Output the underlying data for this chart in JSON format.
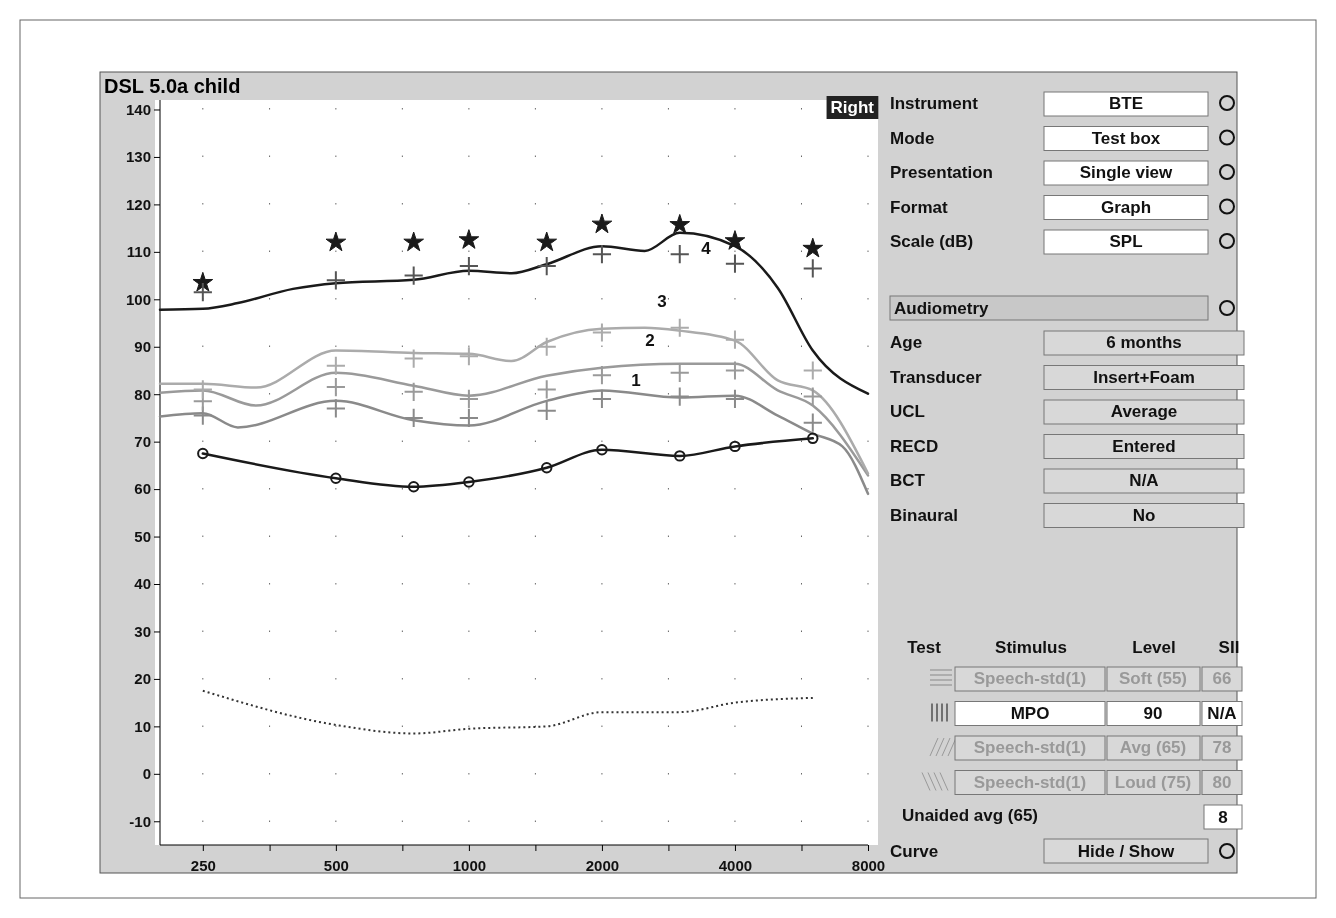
{
  "chart_data": [
    {
      "type": "line",
      "title": "DSL 5.0a child",
      "log": "x",
      "xlim": [
        200,
        8000
      ],
      "ylim": [
        -15,
        142
      ],
      "xticks": [
        250,
        {
          "value": 354,
          "label": null
        },
        500,
        {
          "value": 707,
          "label": null
        },
        1000,
        {
          "value": 1414,
          "label": null
        },
        2000,
        {
          "value": 2828,
          "label": null
        },
        4000,
        {
          "value": 5657,
          "label": null
        },
        8000
      ],
      "yticks": [
        -10,
        0,
        10,
        20,
        30,
        40,
        50,
        60,
        70,
        80,
        90,
        100,
        110,
        120,
        130,
        140
      ],
      "grid": true,
      "series": [
        {
          "type": "line",
          "color": "#8a8a8a",
          "marker": "none",
          "x": [
            200,
            250,
            300,
            500,
            750,
            1000,
            1500,
            2000,
            3000,
            4000,
            5000,
            6000,
            7000,
            8000
          ],
          "values": [
            75.3,
            76,
            73,
            78.6,
            74.5,
            73.4,
            78.6,
            80.8,
            79.3,
            79.7,
            75.5,
            71.7,
            69,
            59
          ]
        },
        {
          "type": "line",
          "color": "#9a9a9a",
          "marker": "none",
          "x": [
            200,
            250,
            330,
            500,
            750,
            1000,
            1500,
            2000,
            3000,
            4000,
            5000,
            6000,
            8000
          ],
          "values": [
            80.3,
            80.8,
            77.6,
            84.5,
            81.8,
            79.7,
            83.9,
            85.6,
            86.4,
            86.4,
            80.8,
            77.6,
            62.9
          ]
        },
        {
          "type": "line",
          "color": "#ababab",
          "marker": "none",
          "x": [
            200,
            250,
            330,
            500,
            750,
            1000,
            1250,
            1500,
            2000,
            2500,
            3000,
            4000,
            5000,
            6000,
            8000
          ],
          "values": [
            82.2,
            82.2,
            81.4,
            89.2,
            88.7,
            88.5,
            87,
            91,
            93.8,
            94,
            93.4,
            91.3,
            82.9,
            80.8,
            63.3
          ]
        },
        {
          "type": "line",
          "color": "#1a1a1a",
          "marker": "none",
          "x": [
            200,
            250,
            300,
            400,
            500,
            750,
            1000,
            1250,
            1500,
            2000,
            2500,
            3000,
            4000,
            5000,
            6000,
            8000
          ],
          "values": [
            97.8,
            98,
            99.2,
            102.2,
            103.4,
            104.1,
            106,
            105.5,
            107.4,
            111.2,
            110.2,
            114,
            111.2,
            102.4,
            89.2,
            80.1
          ]
        },
        {
          "type": "line",
          "color": "#1a1a1a",
          "marker": "circle",
          "x": [
            250,
            500,
            750,
            1000,
            1500,
            2000,
            3000,
            4000,
            6000
          ],
          "values": [
            67.5,
            62.3,
            60.5,
            61.5,
            64.5,
            68.3,
            67,
            69,
            70.7
          ]
        },
        {
          "type": "scatter",
          "color": "#1a1a1a",
          "marker": "star",
          "x": [
            250,
            500,
            750,
            1000,
            1500,
            2000,
            3000,
            4000,
            6000
          ],
          "values": [
            103.5,
            112,
            112,
            112.5,
            112,
            115.8,
            115.7,
            112.3,
            110.7
          ]
        },
        {
          "type": "scatter",
          "color": "#555555",
          "marker": "cross",
          "x": [
            250,
            500,
            750,
            1000,
            1500,
            2000,
            3000,
            4000,
            6000
          ],
          "values": [
            101.5,
            104,
            105,
            107,
            107,
            109.5,
            109.5,
            107.5,
            106.5
          ]
        },
        {
          "type": "scatter",
          "color": "#8a8a8a",
          "marker": "cross",
          "x": [
            250,
            500,
            750,
            1000,
            1500,
            2000,
            3000,
            4000,
            6000
          ],
          "values": [
            75.5,
            77,
            75,
            75,
            76.5,
            79,
            79.5,
            79,
            74
          ]
        },
        {
          "type": "scatter",
          "color": "#9a9a9a",
          "marker": "cross",
          "x": [
            250,
            500,
            750,
            1000,
            1500,
            2000,
            3000,
            4000,
            6000
          ],
          "values": [
            78.5,
            81.5,
            80.5,
            79,
            81,
            84,
            84.5,
            85,
            79.5
          ]
        },
        {
          "type": "scatter",
          "color": "#ababab",
          "marker": "cross",
          "x": [
            250,
            500,
            750,
            1000,
            1500,
            2000,
            3000,
            4000,
            6000
          ],
          "values": [
            81,
            86,
            87.5,
            88,
            90,
            93,
            94,
            91.5,
            85
          ]
        },
        {
          "type": "line",
          "color": "#333333",
          "marker": "none",
          "line_style": "dotted",
          "x": [
            250,
            500,
            750,
            1000,
            1500,
            2000,
            3000,
            4000,
            6000
          ],
          "values": [
            17.5,
            10.3,
            8.5,
            9.5,
            10,
            13,
            13,
            15,
            16
          ]
        }
      ],
      "annotations": [
        "Right",
        "1",
        "2",
        "3",
        "4"
      ]
    },
    {
      "type": "other",
      "annotations": [
        "Instrument",
        "BTE",
        "Mode",
        "Test box",
        "Presentation",
        "Single view",
        "Format",
        "Graph",
        "Scale (dB)",
        "SPL",
        "Audiometry",
        "Age",
        "6 months",
        "Transducer",
        "Insert+Foam",
        "UCL",
        "Average",
        "RECD",
        "Entered",
        "BCT",
        "N/A",
        "Binaural",
        "No",
        "Test",
        "Stimulus",
        "Level",
        "SII",
        "Speech-std(1)",
        "Soft (55)",
        "66",
        "MPO",
        "90",
        "N/A",
        "Speech-std(1)",
        "Avg (65)",
        "78",
        "Speech-std(1)",
        "Loud (75)",
        "80",
        "Unaided avg (65)",
        "8",
        "Curve",
        "Hide / Show"
      ]
    }
  ]
}
